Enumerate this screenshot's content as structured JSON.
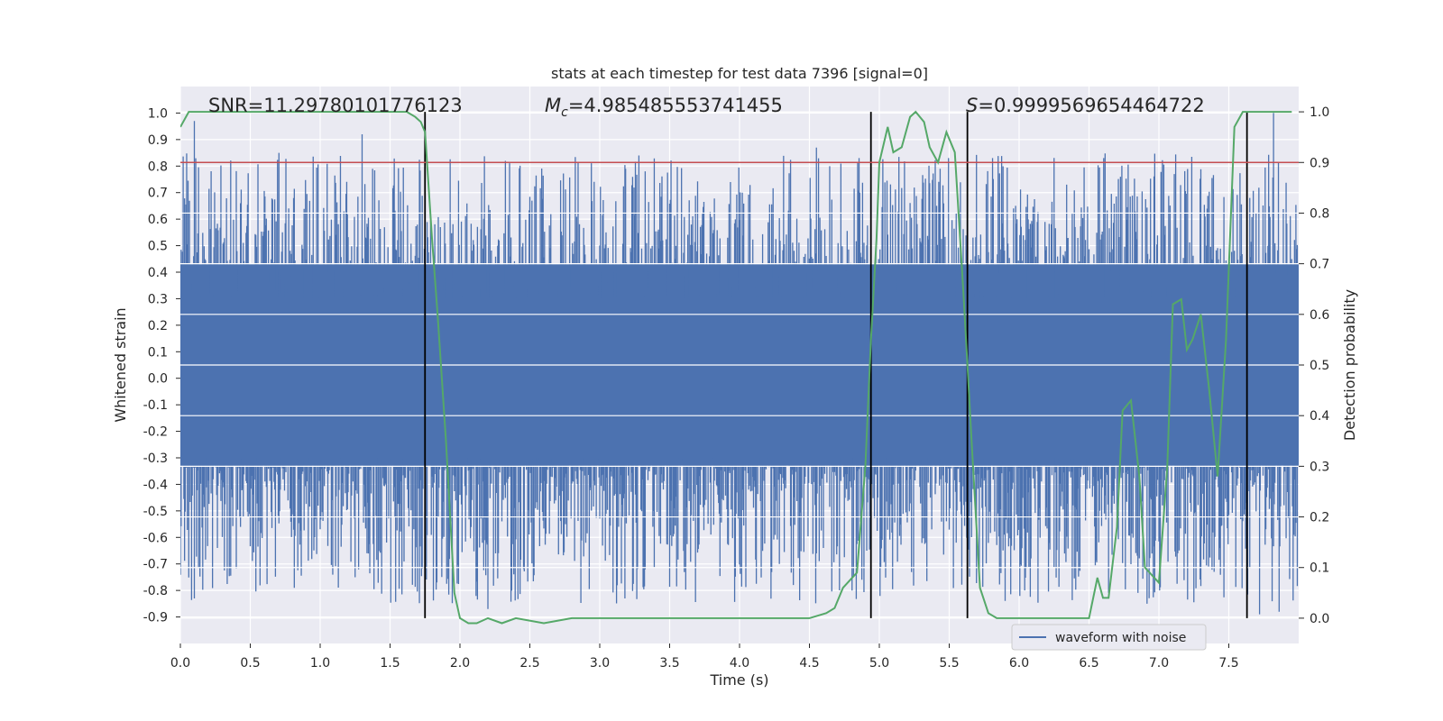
{
  "chart_data": {
    "type": "line",
    "title": "stats at each timestep for test data 7396 [signal=0]",
    "xlabel": "Time (s)",
    "ylabel_left": "Whitened strain",
    "ylabel_right": "Detection probability",
    "xlim": [
      0.0,
      8.0
    ],
    "ylim_left": [
      -1.0,
      1.1
    ],
    "ylim_right": [
      -0.05,
      1.05
    ],
    "x_ticks": [
      "0.0",
      "0.5",
      "1.0",
      "1.5",
      "2.0",
      "2.5",
      "3.0",
      "3.5",
      "4.0",
      "4.5",
      "5.0",
      "5.5",
      "6.0",
      "6.5",
      "7.0",
      "7.5"
    ],
    "y_ticks_left": [
      "1.0",
      "0.9",
      "0.8",
      "0.7",
      "0.6",
      "0.5",
      "0.4",
      "0.3",
      "0.2",
      "0.1",
      "0.0",
      "-0.1",
      "-0.2",
      "-0.3",
      "-0.4",
      "-0.5",
      "-0.6",
      "-0.7",
      "-0.8",
      "-0.9"
    ],
    "y_ticks_right": [
      "1.0",
      "0.9",
      "0.8",
      "0.7",
      "0.6",
      "0.5",
      "0.4",
      "0.3",
      "0.2",
      "0.1",
      "0.0"
    ],
    "grid": true,
    "annotations": {
      "snr": "SNR=11.29780101776123",
      "mc_symbol": "M",
      "mc_subscript": "c",
      "mc_value": "=4.985485553741455",
      "s_symbol": "S",
      "s_value": "=0.9999569654464722"
    },
    "threshold_right": 0.9,
    "vertical_lines_x": [
      1.75,
      4.94,
      5.63,
      7.63
    ],
    "legend": {
      "label": "waveform with noise",
      "position": "lower right"
    },
    "series": [
      {
        "name": "waveform with noise",
        "color": "#4c72b0",
        "axis": "left",
        "description_ranges": {
          "core_range": [
            -0.33,
            0.43
          ],
          "extreme_peaks": [
            0.97,
            1.0
          ],
          "extreme_troughs": [
            -0.89
          ]
        }
      },
      {
        "axis": "right",
        "color": "#55a868",
        "x": [
          0.0,
          0.06,
          0.1,
          0.2,
          0.4,
          0.8,
          1.2,
          1.5,
          1.62,
          1.68,
          1.72,
          1.75,
          1.8,
          1.84,
          1.9,
          1.96,
          2.0,
          2.06,
          2.12,
          2.2,
          2.3,
          2.4,
          2.6,
          2.8,
          3.0,
          3.4,
          3.8,
          4.2,
          4.5,
          4.62,
          4.68,
          4.74,
          4.84,
          4.9,
          4.94,
          4.98,
          5.0,
          5.06,
          5.1,
          5.16,
          5.22,
          5.26,
          5.32,
          5.36,
          5.42,
          5.48,
          5.54,
          5.6,
          5.63,
          5.66,
          5.72,
          5.78,
          5.84,
          5.9,
          6.0,
          6.2,
          6.4,
          6.5,
          6.56,
          6.6,
          6.64,
          6.7,
          6.74,
          6.8,
          6.86,
          6.9,
          7.0,
          7.06,
          7.1,
          7.16,
          7.2,
          7.24,
          7.3,
          7.36,
          7.42,
          7.48,
          7.54,
          7.6,
          7.64,
          7.7,
          7.76,
          7.8,
          7.85,
          7.9,
          7.95
        ],
        "y": [
          0.97,
          1.0,
          1.0,
          1.0,
          1.0,
          1.0,
          1.0,
          1.0,
          1.0,
          0.99,
          0.98,
          0.96,
          0.75,
          0.6,
          0.35,
          0.05,
          0.0,
          -0.01,
          -0.01,
          0.0,
          -0.01,
          0.0,
          -0.01,
          0.0,
          0.0,
          0.0,
          0.0,
          0.0,
          0.0,
          0.01,
          0.02,
          0.06,
          0.09,
          0.3,
          0.55,
          0.75,
          0.9,
          0.97,
          0.92,
          0.93,
          0.99,
          1.0,
          0.98,
          0.93,
          0.9,
          0.96,
          0.92,
          0.65,
          0.5,
          0.35,
          0.06,
          0.01,
          0.0,
          0.0,
          0.0,
          0.0,
          0.0,
          0.0,
          0.08,
          0.04,
          0.04,
          0.18,
          0.41,
          0.43,
          0.28,
          0.1,
          0.07,
          0.3,
          0.62,
          0.63,
          0.53,
          0.55,
          0.6,
          0.45,
          0.28,
          0.55,
          0.97,
          1.0,
          1.0,
          1.0,
          1.0,
          1.0,
          1.0,
          1.0,
          1.0
        ]
      },
      {
        "axis": "right",
        "color": "#c44e52",
        "type": "hline",
        "y": 0.9
      }
    ]
  }
}
